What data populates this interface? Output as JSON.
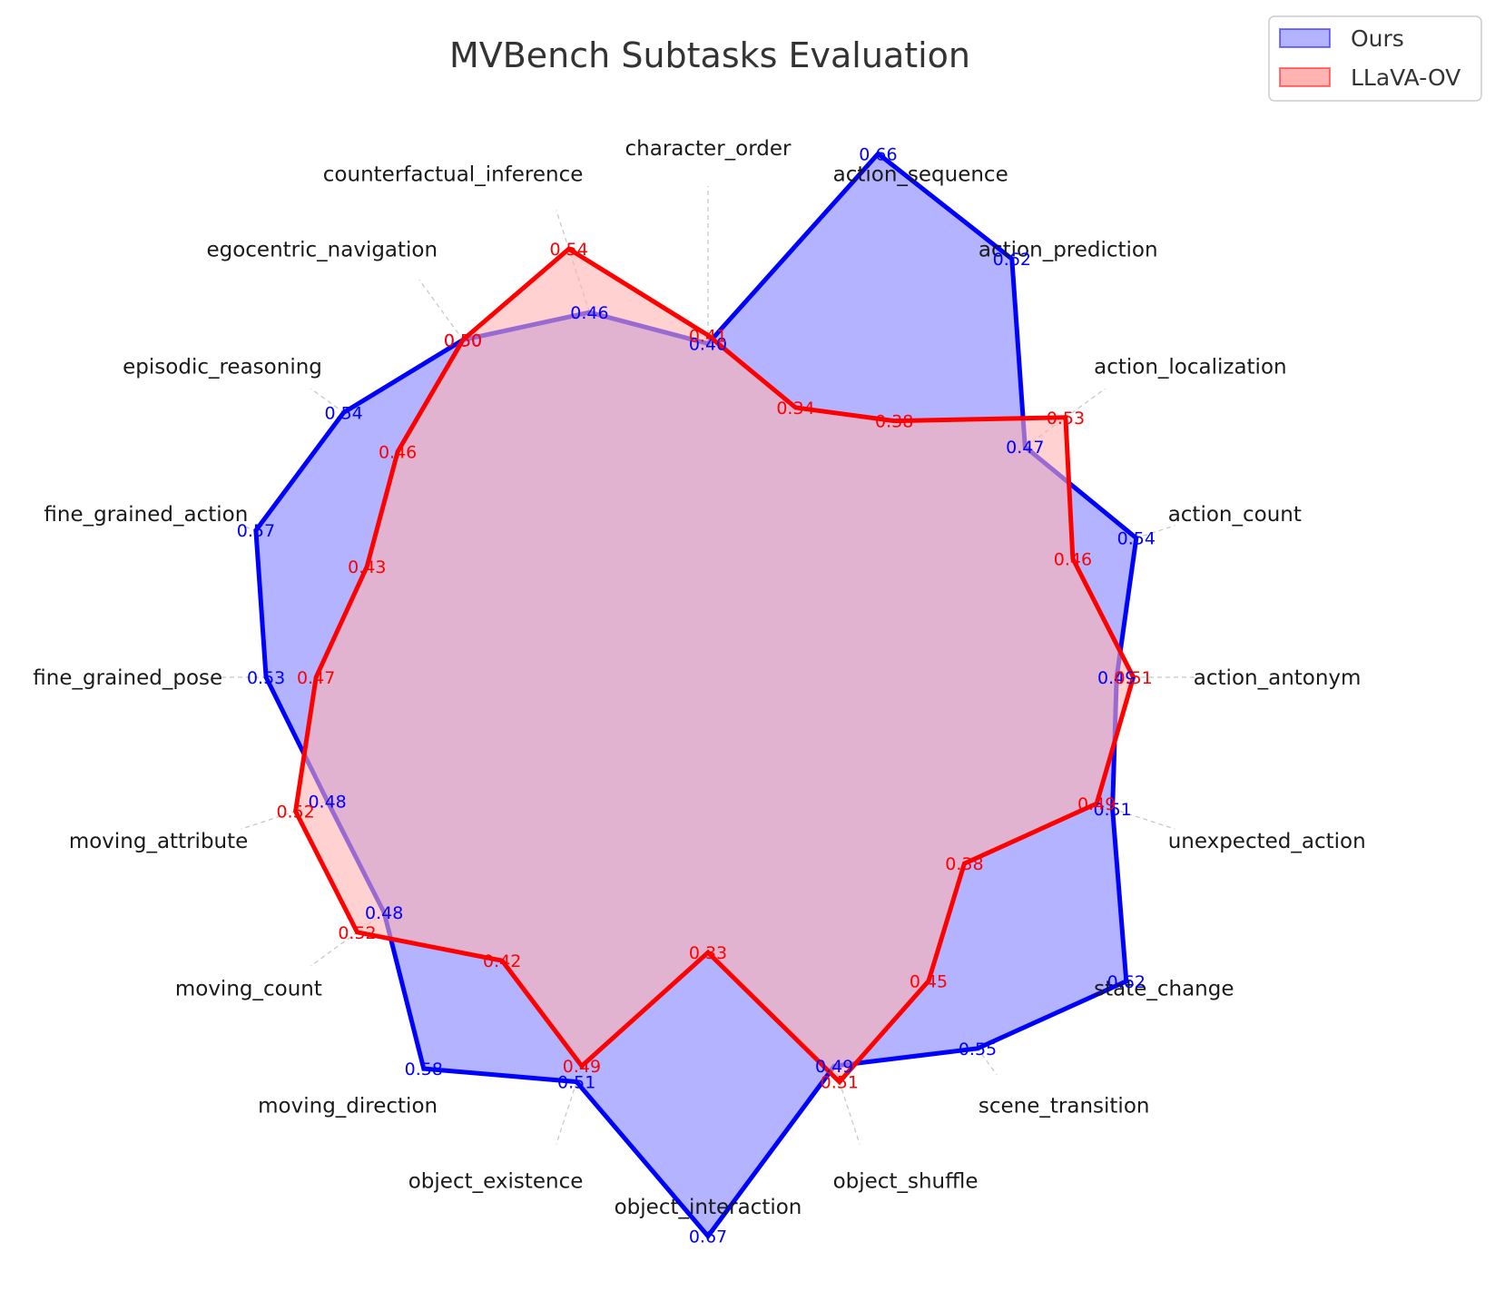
{
  "chart_data": {
    "type": "radar",
    "title": "MVBench Subtasks Evaluation",
    "categories": [
      "action_antonym",
      "action_count",
      "action_localization",
      "action_prediction",
      "action_sequence",
      "character_order",
      "counterfactual_inference",
      "egocentric_navigation",
      "episodic_reasoning",
      "fine_grained_action",
      "fine_grained_pose",
      "moving_attribute",
      "moving_count",
      "moving_direction",
      "object_existence",
      "object_interaction",
      "object_shuffle",
      "scene_transition",
      "state_change",
      "unexpected_action"
    ],
    "series": [
      {
        "name": "Ours",
        "color": "#0000ff",
        "fill": "#b3b3ff",
        "values": [
          0.49,
          0.54,
          0.47,
          0.62,
          0.66,
          0.4,
          0.46,
          0.5,
          0.54,
          0.57,
          0.53,
          0.48,
          0.48,
          0.58,
          0.51,
          0.67,
          0.49,
          0.55,
          0.62,
          0.51
        ],
        "labels": [
          "0.49",
          "0.54",
          "0.47",
          "0.62",
          "0.66",
          "0.40",
          "0.46",
          "0.50",
          "0.54",
          "0.57",
          "0.53",
          "0.48",
          "0.48",
          "0.58",
          "0.51",
          "0.67",
          "0.49",
          "0.55",
          "0.62",
          "0.51"
        ]
      },
      {
        "name": "LLaVA-OV",
        "color": "#ff0000",
        "fill": "#ffb3b3",
        "values": [
          0.51,
          0.46,
          0.53,
          0.38,
          0.34,
          0.41,
          0.54,
          0.5,
          0.46,
          0.43,
          0.47,
          0.52,
          0.52,
          0.42,
          0.49,
          0.33,
          0.51,
          0.45,
          0.38,
          0.49
        ],
        "labels": [
          "0.51",
          "0.46",
          "0.53",
          "0.38",
          "0.34",
          "0.41",
          "0.54",
          "0.50",
          "0.46",
          "0.43",
          "0.47",
          "0.52",
          "0.52",
          "0.42",
          "0.49",
          "0.33",
          "0.51",
          "0.45",
          "0.38",
          "0.49"
        ]
      }
    ],
    "rlim": [
      0,
      0.8
    ],
    "grid": true,
    "legend": "top-right"
  }
}
